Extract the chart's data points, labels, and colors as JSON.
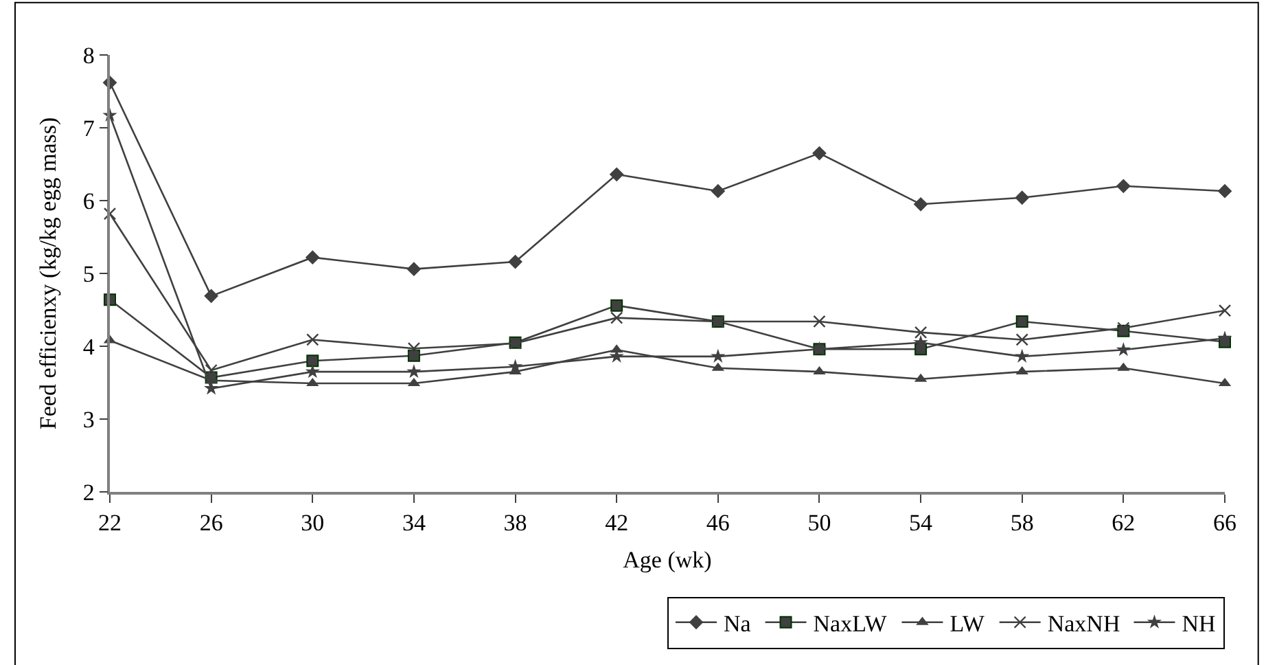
{
  "chart_data": {
    "type": "line",
    "xlabel": "Age (wk)",
    "ylabel": "Feed efficienxy (kg/kg egg mass)",
    "categories": [
      "22",
      "26",
      "30",
      "34",
      "38",
      "42",
      "46",
      "50",
      "54",
      "58",
      "62",
      "66"
    ],
    "ylim": [
      2,
      8
    ],
    "yticks": [
      2,
      3,
      4,
      5,
      6,
      7,
      8
    ],
    "legend": "bottom right",
    "line_style": "solid",
    "series": [
      {
        "name": "Na",
        "color": "#404040",
        "marker": "diamond",
        "values": [
          7.62,
          4.69,
          5.22,
          5.06,
          5.16,
          6.36,
          6.13,
          6.65,
          5.95,
          6.04,
          6.2,
          6.13
        ]
      },
      {
        "name": "NaxLW",
        "color": "#404040",
        "marker": "square",
        "values": [
          4.64,
          3.57,
          3.8,
          3.87,
          4.05,
          4.56,
          4.34,
          3.96,
          3.96,
          4.34,
          4.21,
          4.06
        ]
      },
      {
        "name": "LW",
        "color": "#404040",
        "marker": "triangle",
        "values": [
          4.08,
          3.53,
          3.49,
          3.49,
          3.65,
          3.95,
          3.7,
          3.65,
          3.55,
          3.65,
          3.7,
          3.49
        ]
      },
      {
        "name": "NaxNH",
        "color": "#404040",
        "marker": "cross",
        "values": [
          5.82,
          3.67,
          4.09,
          3.97,
          4.04,
          4.39,
          4.34,
          4.34,
          4.19,
          4.09,
          4.25,
          4.49
        ]
      },
      {
        "name": "NH",
        "color": "#404040",
        "marker": "star",
        "values": [
          7.17,
          3.42,
          3.65,
          3.65,
          3.72,
          3.86,
          3.86,
          3.96,
          4.05,
          3.86,
          3.95,
          4.11
        ]
      }
    ]
  }
}
